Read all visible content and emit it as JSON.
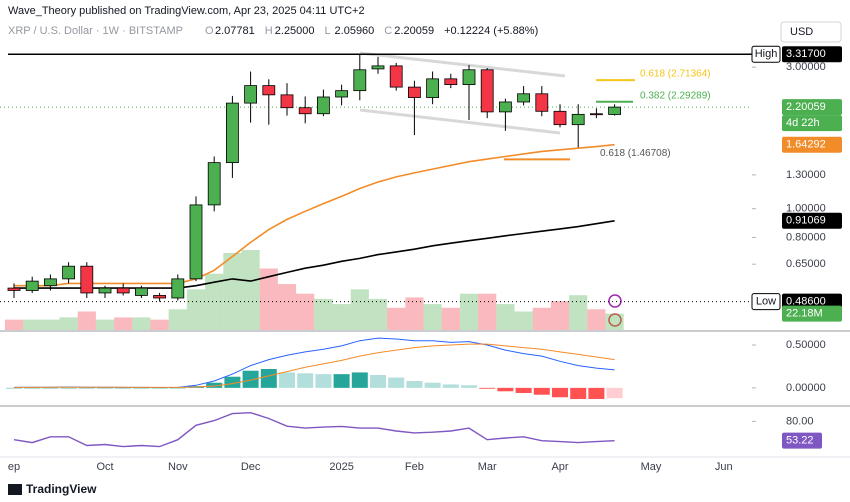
{
  "header": {
    "title": "Wave_Theory published on TradingView.com, Apr 23, 2025 04:11 UTC+2",
    "symbol": "XRP / U.S. Dollar · 1W · BITSTAMP",
    "ohlc": [
      {
        "key": "O",
        "text": "2.07781"
      },
      {
        "key": "H",
        "text": "2.25000"
      },
      {
        "key": "L",
        "text": "2.05960"
      },
      {
        "key": "C",
        "text": "2.20059"
      }
    ],
    "change": "+0.12224 (+5.88%)",
    "currency": "USD",
    "brand": "TradingView"
  },
  "chart_data": [
    {
      "type": "candlestick",
      "log": true,
      "grid": false,
      "categories": [
        "ep",
        null,
        null,
        null,
        null,
        "Oct",
        null,
        null,
        null,
        "Nov",
        null,
        null,
        null,
        "Dec",
        null,
        null,
        null,
        null,
        "2025",
        null,
        null,
        null,
        "Feb",
        null,
        null,
        null,
        "Mar",
        null,
        null,
        null,
        "Apr",
        null,
        null,
        null,
        null,
        "May",
        null,
        null,
        null,
        "Jun"
      ],
      "open": [
        0.54,
        0.53,
        0.55,
        0.58,
        0.64,
        0.52,
        0.54,
        0.51,
        0.51,
        0.5,
        0.58,
        1.03,
        1.43,
        2.27,
        2.6,
        2.42,
        2.19,
        2.09,
        2.38,
        2.5,
        2.96,
        3.03,
        2.57,
        2.37,
        2.74,
        2.62,
        2.94,
        2.12,
        2.29,
        2.44,
        2.13,
        1.92,
        2.09,
        2.07781,
        null,
        null,
        null,
        null,
        null,
        null
      ],
      "high": [
        0.56,
        0.59,
        0.6,
        0.66,
        0.66,
        0.55,
        0.56,
        0.55,
        0.52,
        0.6,
        1.1,
        1.5,
        2.4,
        2.9,
        2.73,
        2.65,
        2.39,
        2.52,
        2.62,
        3.317,
        3.25,
        3.1,
        2.7,
        2.9,
        2.85,
        3.05,
        2.98,
        2.35,
        2.59,
        2.59,
        2.25,
        2.25,
        2.18,
        2.25,
        null,
        null,
        null,
        null,
        null,
        null
      ],
      "low": [
        0.5,
        0.52,
        0.53,
        0.56,
        0.5,
        0.5,
        0.51,
        0.5,
        0.486,
        0.49,
        0.57,
        0.98,
        1.27,
        1.95,
        1.92,
        2.06,
        1.94,
        2.05,
        2.23,
        2.32,
        2.85,
        2.5,
        1.77,
        2.25,
        2.55,
        1.99,
        2.02,
        1.83,
        2.23,
        2.05,
        1.88,
        1.61,
        2.02,
        2.0596,
        null,
        null,
        null,
        null,
        null,
        null
      ],
      "close": [
        0.53,
        0.57,
        0.58,
        0.64,
        0.52,
        0.54,
        0.52,
        0.54,
        0.5,
        0.58,
        1.03,
        1.43,
        2.27,
        2.6,
        2.42,
        2.19,
        2.09,
        2.38,
        2.5,
        2.94,
        3.03,
        2.57,
        2.37,
        2.74,
        2.62,
        2.94,
        2.12,
        2.29,
        2.44,
        2.13,
        1.92,
        2.08,
        2.08,
        2.20059,
        null,
        null,
        null,
        null,
        null,
        null
      ],
      "up_color": "#4caf50",
      "down_color": "#f23645",
      "volume": [
        14,
        14,
        14,
        17,
        25,
        14,
        17,
        17,
        14,
        28,
        55,
        76,
        104,
        108,
        83,
        62,
        49,
        42,
        35,
        55,
        42,
        30,
        44,
        35,
        30,
        49,
        49,
        35,
        25,
        30,
        39,
        47,
        28,
        22.18,
        null,
        null,
        null,
        null,
        null,
        null
      ],
      "volume_label": {
        "value": 22.18,
        "label": "22.18M"
      },
      "series": [
        {
          "color": "#f28c28",
          "values": [
            0.55,
            0.55,
            0.55,
            0.56,
            0.56,
            0.56,
            0.56,
            0.56,
            0.56,
            0.56,
            0.58,
            0.62,
            0.69,
            0.77,
            0.85,
            0.92,
            0.98,
            1.04,
            1.1,
            1.17,
            1.23,
            1.28,
            1.32,
            1.36,
            1.4,
            1.44,
            1.47,
            1.5,
            1.53,
            1.56,
            1.58,
            1.6,
            1.62,
            1.64292,
            null,
            null,
            null,
            null,
            null,
            null
          ]
        },
        {
          "color": "#000000",
          "values": [
            0.54,
            0.54,
            0.54,
            0.54,
            0.54,
            0.54,
            0.54,
            0.54,
            0.54,
            0.54,
            0.55,
            0.565,
            0.58,
            0.57,
            0.59,
            0.61,
            0.63,
            0.645,
            0.665,
            0.68,
            0.7,
            0.715,
            0.73,
            0.75,
            0.765,
            0.78,
            0.795,
            0.81,
            0.825,
            0.84,
            0.855,
            0.87,
            0.89,
            0.91069,
            null,
            null,
            null,
            null,
            null,
            null
          ]
        }
      ],
      "ylim": [
        0.39,
        4.26
      ],
      "yticks": [
        {
          "value": 3,
          "label": "3.00000"
        },
        {
          "value": 1.3,
          "label": "1.30000"
        },
        {
          "value": 1,
          "label": "1.00000"
        },
        {
          "value": 0.8,
          "label": "0.80000"
        },
        {
          "value": 0.65,
          "label": "0.65000"
        }
      ],
      "fib_levels": [
        {
          "label": "0.618 (2.71364)",
          "value": 2.71364,
          "color": "#f5c518"
        },
        {
          "label": "0.382 (2.29289)",
          "value": 2.29289,
          "color": "#4caf50"
        },
        {
          "label": "0.618 (1.46708)",
          "value": 1.46708,
          "color": "#f28c28"
        }
      ],
      "price_labels": [
        {
          "tag": "High",
          "label": "3.31700",
          "value": 3.317,
          "color": "#000000",
          "line": "solid"
        },
        {
          "label": "2.20059",
          "value": 2.20059,
          "color": "#4caf50",
          "line": "dotted",
          "sub": "4d 22h"
        },
        {
          "label": "1.64292",
          "value": 1.64292,
          "color": "#f28c28",
          "line": "none"
        },
        {
          "label": "0.91069",
          "value": 0.91069,
          "color": "#000000",
          "line": "none"
        },
        {
          "tag": "Low",
          "label": "0.48600",
          "value": 0.486,
          "color": "#000000",
          "line": "dotted"
        }
      ]
    },
    {
      "type": "macd",
      "histogram": [
        0,
        0,
        0,
        0,
        0,
        0,
        0,
        0,
        0,
        0,
        0.02,
        0.06,
        0.13,
        0.2,
        0.22,
        0.18,
        0.17,
        0.16,
        0.16,
        0.18,
        0.15,
        0.12,
        0.08,
        0.06,
        0.04,
        0.03,
        -0.01,
        -0.04,
        -0.06,
        -0.08,
        -0.11,
        -0.13,
        -0.13,
        -0.12,
        null,
        null,
        null,
        null,
        null,
        null
      ],
      "series": [
        {
          "color": "#2962ff",
          "values": [
            0.005,
            0.006,
            0.008,
            0.01,
            0.008,
            0.006,
            0.005,
            0.005,
            0.004,
            0.005,
            0.03,
            0.08,
            0.16,
            0.26,
            0.33,
            0.38,
            0.42,
            0.45,
            0.49,
            0.55,
            0.58,
            0.57,
            0.55,
            0.55,
            0.53,
            0.54,
            0.5,
            0.44,
            0.4,
            0.37,
            0.31,
            0.26,
            0.23,
            0.21,
            null,
            null,
            null,
            null,
            null,
            null
          ]
        },
        {
          "color": "#f28c28",
          "values": [
            0.005,
            0.005,
            0.006,
            0.007,
            0.007,
            0.006,
            0.006,
            0.005,
            0.005,
            0.005,
            0.01,
            0.02,
            0.05,
            0.09,
            0.14,
            0.19,
            0.24,
            0.28,
            0.32,
            0.37,
            0.41,
            0.44,
            0.47,
            0.49,
            0.5,
            0.51,
            0.51,
            0.49,
            0.47,
            0.45,
            0.42,
            0.39,
            0.36,
            0.33,
            null,
            null,
            null,
            null,
            null,
            null
          ]
        }
      ],
      "ylim": [
        -0.2,
        0.64
      ],
      "yticks": [
        {
          "value": 0.5,
          "label": "0.50000"
        },
        {
          "value": 0,
          "label": "0.00000"
        }
      ]
    },
    {
      "type": "line",
      "series": [
        {
          "color": "#7e57c2",
          "values": [
            54.6,
            50.5,
            58.6,
            58.6,
            46.5,
            48,
            45,
            46.5,
            45,
            54.6,
            74.6,
            81,
            90.7,
            92,
            84,
            73.3,
            70.6,
            72,
            73,
            70.6,
            70.6,
            66.6,
            64,
            65,
            66.6,
            70.6,
            54.6,
            57,
            58.6,
            53.2,
            52,
            50.5,
            52,
            53.22,
            null,
            null,
            null,
            null,
            null,
            null
          ]
        }
      ],
      "last_label": {
        "value": 53.22,
        "label": "53.22"
      },
      "ylim": [
        32,
        98.5
      ],
      "yticks": [
        {
          "value": 80,
          "label": "80.00"
        }
      ]
    }
  ]
}
